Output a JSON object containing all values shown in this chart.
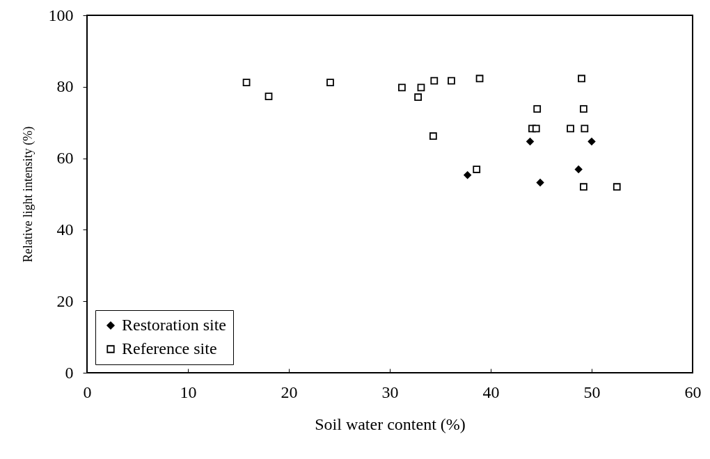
{
  "chart_data": {
    "type": "scatter",
    "xlabel": "Soil water content (%)",
    "ylabel": "Relative light intensity (%)",
    "xlim": [
      0,
      60
    ],
    "xticks": [
      0,
      10,
      20,
      30,
      40,
      50,
      60
    ],
    "ylim": [
      0,
      100
    ],
    "yticks": [
      0,
      20,
      40,
      60,
      80,
      100
    ],
    "grid": false,
    "legend": "bottom left",
    "series": [
      {
        "name": "Restoration site",
        "color": "#000000",
        "marker": "diamond",
        "x": [
          43.9,
          50.0,
          37.7,
          48.7,
          44.9
        ],
        "values": [
          64.7,
          64.7,
          55.3,
          56.9,
          53.2
        ]
      },
      {
        "name": "Reference site",
        "color": "#000000",
        "marker": "square",
        "x": [
          15.8,
          18.0,
          24.1,
          31.2,
          33.1,
          32.8,
          34.4,
          36.1,
          38.9,
          49.0,
          44.6,
          49.2,
          44.1,
          44.5,
          47.9,
          49.3,
          34.3,
          38.6,
          49.2,
          52.5
        ],
        "values": [
          81.2,
          77.3,
          81.2,
          79.8,
          79.8,
          77.1,
          81.7,
          81.7,
          82.3,
          82.3,
          73.8,
          73.8,
          68.3,
          68.3,
          68.3,
          68.3,
          66.2,
          56.9,
          52.0,
          52.0
        ]
      }
    ]
  }
}
